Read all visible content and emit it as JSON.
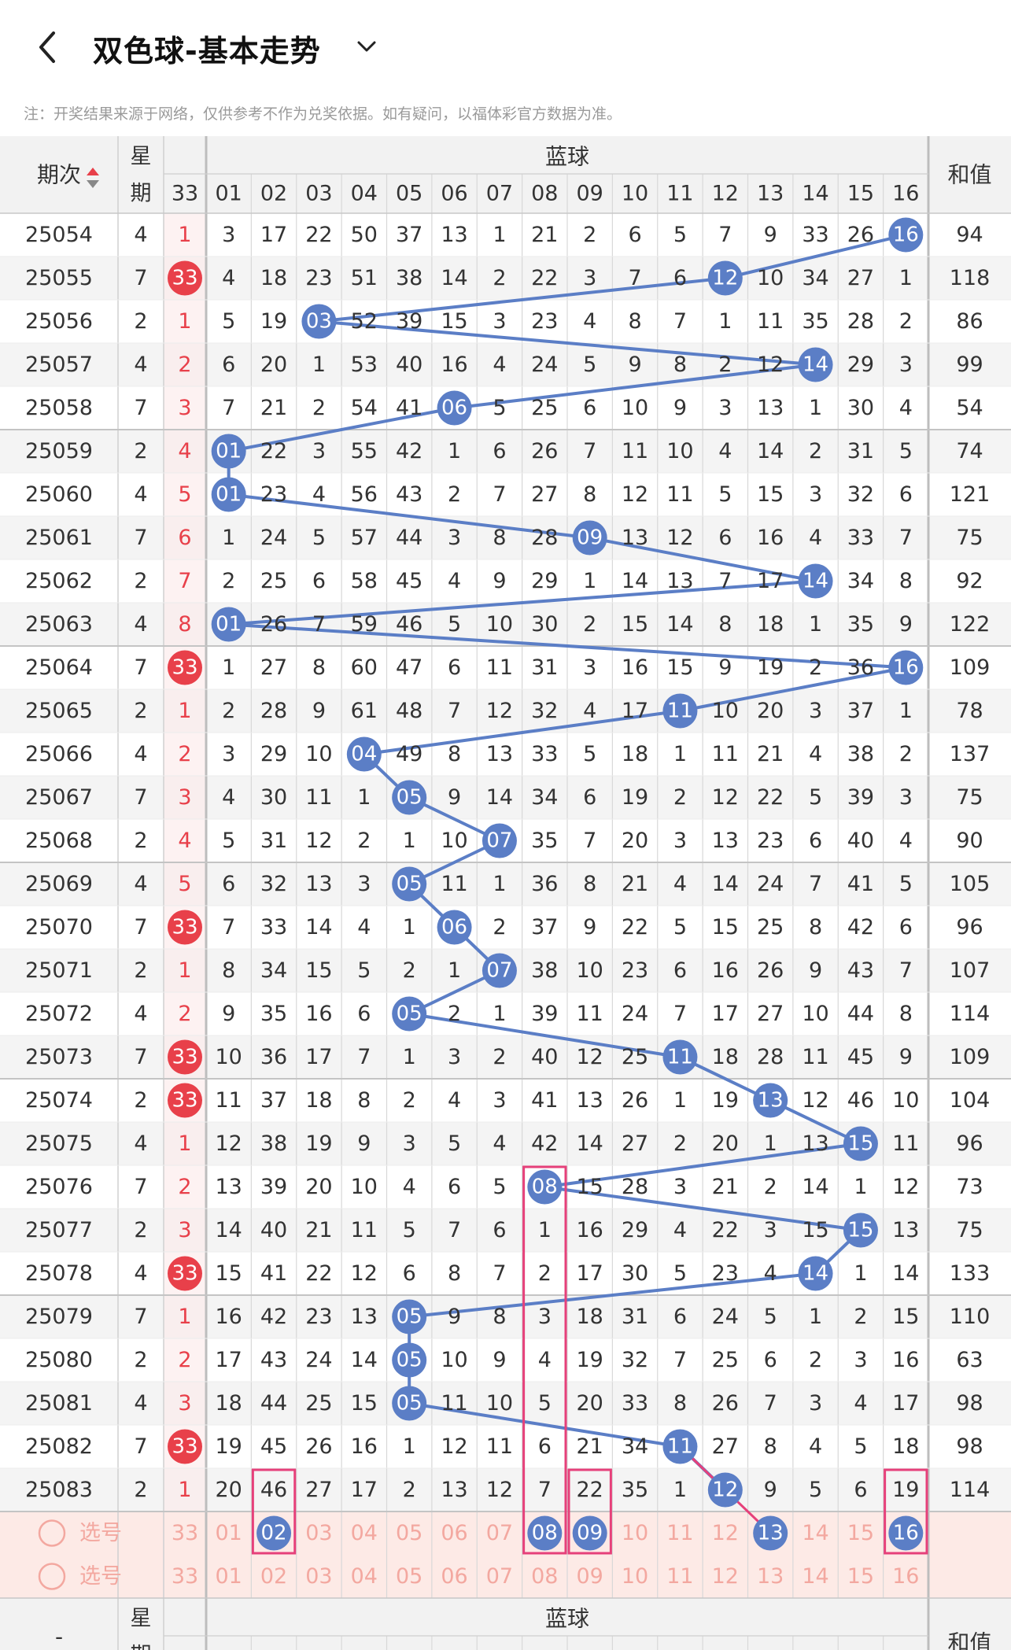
{
  "header": {
    "title": "双色球-基本走势",
    "back_icon": "chevron-left-icon",
    "dropdown_icon": "chevron-down-icon"
  },
  "notice": "注：开奖结果来源于网络，仅供参考不作为兑奖依据。如有疑问，以福体彩官方数据为准。",
  "table": {
    "header_issue": "期次",
    "header_week_1": "星",
    "header_week_2": "期",
    "header_red_col": "33",
    "header_blue_group": "蓝球",
    "header_sum": "和值",
    "blue_cols": [
      "01",
      "02",
      "03",
      "04",
      "05",
      "06",
      "07",
      "08",
      "09",
      "10",
      "11",
      "12",
      "13",
      "14",
      "15",
      "16"
    ],
    "footer_issue": "-",
    "footer_week": "星期",
    "footer_blue_group": "蓝球",
    "footer_sum": "和值",
    "rows": [
      {
        "issue": "25054",
        "week": "4",
        "red": "1",
        "red_hit": false,
        "blue": 16,
        "sum": "94",
        "miss": [
          "3",
          "17",
          "22",
          "50",
          "37",
          "13",
          "1",
          "21",
          "2",
          "6",
          "5",
          "7",
          "9",
          "33",
          "26",
          "16"
        ]
      },
      {
        "issue": "25055",
        "week": "7",
        "red": "33",
        "red_hit": true,
        "blue": 12,
        "sum": "118",
        "miss": [
          "4",
          "18",
          "23",
          "51",
          "38",
          "14",
          "2",
          "22",
          "3",
          "7",
          "6",
          "12",
          "10",
          "34",
          "27",
          "1"
        ]
      },
      {
        "issue": "25056",
        "week": "2",
        "red": "1",
        "red_hit": false,
        "blue": 3,
        "sum": "86",
        "miss": [
          "5",
          "19",
          "03",
          "52",
          "39",
          "15",
          "3",
          "23",
          "4",
          "8",
          "7",
          "1",
          "11",
          "35",
          "28",
          "2"
        ]
      },
      {
        "issue": "25057",
        "week": "4",
        "red": "2",
        "red_hit": false,
        "blue": 14,
        "sum": "99",
        "miss": [
          "6",
          "20",
          "1",
          "53",
          "40",
          "16",
          "4",
          "24",
          "5",
          "9",
          "8",
          "2",
          "12",
          "14",
          "29",
          "3"
        ]
      },
      {
        "issue": "25058",
        "week": "7",
        "red": "3",
        "red_hit": false,
        "blue": 6,
        "sum": "54",
        "miss": [
          "7",
          "21",
          "2",
          "54",
          "41",
          "06",
          "5",
          "25",
          "6",
          "10",
          "9",
          "3",
          "13",
          "1",
          "30",
          "4"
        ]
      },
      {
        "issue": "25059",
        "week": "2",
        "red": "4",
        "red_hit": false,
        "blue": 1,
        "sum": "74",
        "miss": [
          "01",
          "22",
          "3",
          "55",
          "42",
          "1",
          "6",
          "26",
          "7",
          "11",
          "10",
          "4",
          "14",
          "2",
          "31",
          "5"
        ]
      },
      {
        "issue": "25060",
        "week": "4",
        "red": "5",
        "red_hit": false,
        "blue": 1,
        "sum": "121",
        "miss": [
          "01",
          "23",
          "4",
          "56",
          "43",
          "2",
          "7",
          "27",
          "8",
          "12",
          "11",
          "5",
          "15",
          "3",
          "32",
          "6"
        ]
      },
      {
        "issue": "25061",
        "week": "7",
        "red": "6",
        "red_hit": false,
        "blue": 9,
        "sum": "75",
        "miss": [
          "1",
          "24",
          "5",
          "57",
          "44",
          "3",
          "8",
          "28",
          "09",
          "13",
          "12",
          "6",
          "16",
          "4",
          "33",
          "7"
        ]
      },
      {
        "issue": "25062",
        "week": "2",
        "red": "7",
        "red_hit": false,
        "blue": 14,
        "sum": "92",
        "miss": [
          "2",
          "25",
          "6",
          "58",
          "45",
          "4",
          "9",
          "29",
          "1",
          "14",
          "13",
          "7",
          "17",
          "14",
          "34",
          "8"
        ]
      },
      {
        "issue": "25063",
        "week": "4",
        "red": "8",
        "red_hit": false,
        "blue": 1,
        "sum": "122",
        "miss": [
          "01",
          "26",
          "7",
          "59",
          "46",
          "5",
          "10",
          "30",
          "2",
          "15",
          "14",
          "8",
          "18",
          "1",
          "35",
          "9"
        ]
      },
      {
        "issue": "25064",
        "week": "7",
        "red": "33",
        "red_hit": true,
        "blue": 16,
        "sum": "109",
        "miss": [
          "1",
          "27",
          "8",
          "60",
          "47",
          "6",
          "11",
          "31",
          "3",
          "16",
          "15",
          "9",
          "19",
          "2",
          "36",
          "16"
        ]
      },
      {
        "issue": "25065",
        "week": "2",
        "red": "1",
        "red_hit": false,
        "blue": 11,
        "sum": "78",
        "miss": [
          "2",
          "28",
          "9",
          "61",
          "48",
          "7",
          "12",
          "32",
          "4",
          "17",
          "11",
          "10",
          "20",
          "3",
          "37",
          "1"
        ]
      },
      {
        "issue": "25066",
        "week": "4",
        "red": "2",
        "red_hit": false,
        "blue": 4,
        "sum": "137",
        "miss": [
          "3",
          "29",
          "10",
          "04",
          "49",
          "8",
          "13",
          "33",
          "5",
          "18",
          "1",
          "11",
          "21",
          "4",
          "38",
          "2"
        ]
      },
      {
        "issue": "25067",
        "week": "7",
        "red": "3",
        "red_hit": false,
        "blue": 5,
        "sum": "75",
        "miss": [
          "4",
          "30",
          "11",
          "1",
          "05",
          "9",
          "14",
          "34",
          "6",
          "19",
          "2",
          "12",
          "22",
          "5",
          "39",
          "3"
        ]
      },
      {
        "issue": "25068",
        "week": "2",
        "red": "4",
        "red_hit": false,
        "blue": 7,
        "sum": "90",
        "miss": [
          "5",
          "31",
          "12",
          "2",
          "1",
          "10",
          "07",
          "35",
          "7",
          "20",
          "3",
          "13",
          "23",
          "6",
          "40",
          "4"
        ]
      },
      {
        "issue": "25069",
        "week": "4",
        "red": "5",
        "red_hit": false,
        "blue": 5,
        "sum": "105",
        "miss": [
          "6",
          "32",
          "13",
          "3",
          "05",
          "11",
          "1",
          "36",
          "8",
          "21",
          "4",
          "14",
          "24",
          "7",
          "41",
          "5"
        ]
      },
      {
        "issue": "25070",
        "week": "7",
        "red": "33",
        "red_hit": true,
        "blue": 6,
        "sum": "96",
        "miss": [
          "7",
          "33",
          "14",
          "4",
          "1",
          "06",
          "2",
          "37",
          "9",
          "22",
          "5",
          "15",
          "25",
          "8",
          "42",
          "6"
        ]
      },
      {
        "issue": "25071",
        "week": "2",
        "red": "1",
        "red_hit": false,
        "blue": 7,
        "sum": "107",
        "miss": [
          "8",
          "34",
          "15",
          "5",
          "2",
          "1",
          "07",
          "38",
          "10",
          "23",
          "6",
          "16",
          "26",
          "9",
          "43",
          "7"
        ]
      },
      {
        "issue": "25072",
        "week": "4",
        "red": "2",
        "red_hit": false,
        "blue": 5,
        "sum": "114",
        "miss": [
          "9",
          "35",
          "16",
          "6",
          "05",
          "2",
          "1",
          "39",
          "11",
          "24",
          "7",
          "17",
          "27",
          "10",
          "44",
          "8"
        ]
      },
      {
        "issue": "25073",
        "week": "7",
        "red": "33",
        "red_hit": true,
        "blue": 11,
        "sum": "109",
        "miss": [
          "10",
          "36",
          "17",
          "7",
          "1",
          "3",
          "2",
          "40",
          "12",
          "25",
          "11",
          "18",
          "28",
          "11",
          "45",
          "9"
        ]
      },
      {
        "issue": "25074",
        "week": "2",
        "red": "33",
        "red_hit": true,
        "blue": 13,
        "sum": "104",
        "miss": [
          "11",
          "37",
          "18",
          "8",
          "2",
          "4",
          "3",
          "41",
          "13",
          "26",
          "1",
          "19",
          "13",
          "12",
          "46",
          "10"
        ]
      },
      {
        "issue": "25075",
        "week": "4",
        "red": "1",
        "red_hit": false,
        "blue": 15,
        "sum": "96",
        "miss": [
          "12",
          "38",
          "19",
          "9",
          "3",
          "5",
          "4",
          "42",
          "14",
          "27",
          "2",
          "20",
          "1",
          "13",
          "15",
          "11"
        ]
      },
      {
        "issue": "25076",
        "week": "7",
        "red": "2",
        "red_hit": false,
        "blue": 8,
        "sum": "73",
        "miss": [
          "13",
          "39",
          "20",
          "10",
          "4",
          "6",
          "5",
          "08",
          "15",
          "28",
          "3",
          "21",
          "2",
          "14",
          "1",
          "12"
        ]
      },
      {
        "issue": "25077",
        "week": "2",
        "red": "3",
        "red_hit": false,
        "blue": 15,
        "sum": "75",
        "miss": [
          "14",
          "40",
          "21",
          "11",
          "5",
          "7",
          "6",
          "1",
          "16",
          "29",
          "4",
          "22",
          "3",
          "15",
          "15",
          "13"
        ]
      },
      {
        "issue": "25078",
        "week": "4",
        "red": "33",
        "red_hit": true,
        "blue": 14,
        "sum": "133",
        "miss": [
          "15",
          "41",
          "22",
          "12",
          "6",
          "8",
          "7",
          "2",
          "17",
          "30",
          "5",
          "23",
          "4",
          "14",
          "1",
          "14"
        ]
      },
      {
        "issue": "25079",
        "week": "7",
        "red": "1",
        "red_hit": false,
        "blue": 5,
        "sum": "110",
        "miss": [
          "16",
          "42",
          "23",
          "13",
          "05",
          "9",
          "8",
          "3",
          "18",
          "31",
          "6",
          "24",
          "5",
          "1",
          "2",
          "15"
        ]
      },
      {
        "issue": "25080",
        "week": "2",
        "red": "2",
        "red_hit": false,
        "blue": 5,
        "sum": "63",
        "miss": [
          "17",
          "43",
          "24",
          "14",
          "05",
          "10",
          "9",
          "4",
          "19",
          "32",
          "7",
          "25",
          "6",
          "2",
          "3",
          "16"
        ]
      },
      {
        "issue": "25081",
        "week": "4",
        "red": "3",
        "red_hit": false,
        "blue": 5,
        "sum": "98",
        "miss": [
          "18",
          "44",
          "25",
          "15",
          "05",
          "11",
          "10",
          "5",
          "20",
          "33",
          "8",
          "26",
          "7",
          "3",
          "4",
          "17"
        ]
      },
      {
        "issue": "25082",
        "week": "7",
        "red": "33",
        "red_hit": true,
        "blue": 11,
        "sum": "98",
        "miss": [
          "19",
          "45",
          "26",
          "16",
          "1",
          "12",
          "11",
          "6",
          "21",
          "34",
          "11",
          "27",
          "8",
          "4",
          "5",
          "18"
        ]
      },
      {
        "issue": "25083",
        "week": "2",
        "red": "1",
        "red_hit": false,
        "blue": 12,
        "sum": "114",
        "miss": [
          "20",
          "46",
          "27",
          "17",
          "2",
          "13",
          "12",
          "7",
          "22",
          "35",
          "1",
          "12",
          "9",
          "5",
          "6",
          "19"
        ]
      }
    ],
    "pick_rows": [
      {
        "label": "选号",
        "red": "33",
        "selected": [
          2,
          8,
          9,
          13,
          16
        ]
      },
      {
        "label": "选号",
        "red": "33",
        "selected": []
      }
    ]
  },
  "colors": {
    "blue_ball": "#5b7ec6",
    "red_ball": "#e8404a",
    "red_text": "#e8404a",
    "pick_bg": "#fdeae6",
    "pick_text": "#f3a8a0",
    "highlight_box": "#e6407a",
    "header_bg": "#f2f2f2",
    "stripe_bg": "#f4f4f4"
  }
}
